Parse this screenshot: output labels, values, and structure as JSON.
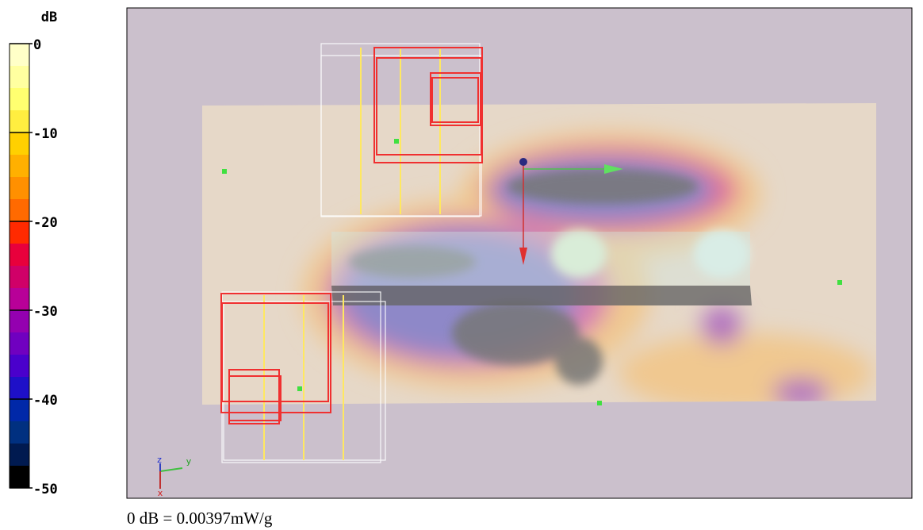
{
  "colorbar": {
    "title": "dB",
    "clim": [
      0,
      -50
    ],
    "ticks": [
      0,
      -10,
      -20,
      -30,
      -40,
      -50
    ],
    "colors": [
      "#ffffc8",
      "#ffffa0",
      "#ffff70",
      "#ffee40",
      "#ffd000",
      "#ffb000",
      "#ff9000",
      "#ff6a00",
      "#ff2a00",
      "#e8003c",
      "#d00068",
      "#b80098",
      "#9400b0",
      "#7000c0",
      "#4a00cc",
      "#1e10c8",
      "#0028a8",
      "#003080",
      "#001a50",
      "#000000"
    ]
  },
  "footer": "0 dB = 0.00397mW/g",
  "axes_triad": {
    "z": "z",
    "y": "y",
    "x": "x"
  }
}
